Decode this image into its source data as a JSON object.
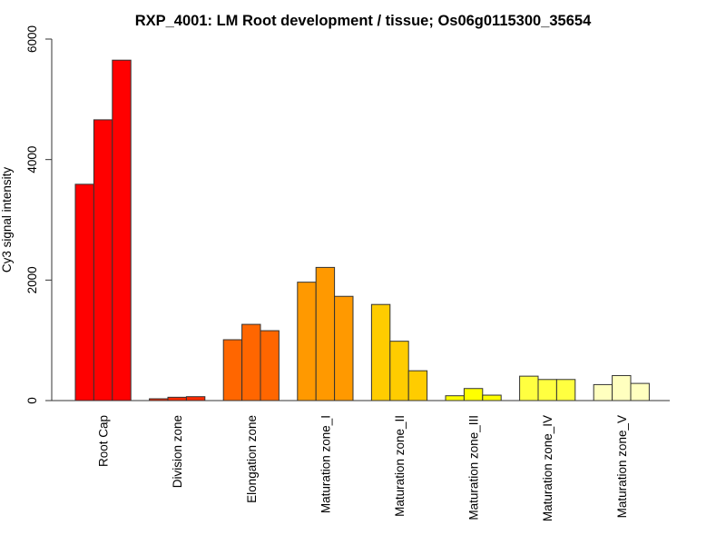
{
  "chart_data": {
    "type": "bar",
    "title": "RXP_4001: LM Root development / tissue; Os06g0115300_35654",
    "xlabel": "",
    "ylabel": "Cy3 signal intensity",
    "ylim": [
      0,
      6000
    ],
    "yticks": [
      0,
      2000,
      4000,
      6000
    ],
    "ytick_labels": [
      "0",
      "2000",
      "4000",
      "6000"
    ],
    "grid": false,
    "legend": "none",
    "categories": [
      "Root Cap",
      "Division zone",
      "Elongation zone",
      "Maturation zone_I",
      "Maturation zone_II",
      "Maturation zone_III",
      "Maturation zone_IV",
      "Maturation zone_V"
    ],
    "colors": [
      "#FF0000",
      "#FF2A00",
      "#FF6600",
      "#FF9900",
      "#FFCC00",
      "#FFFF00",
      "#FFFF40",
      "#FFFFBF"
    ],
    "replicates_per_category": 3,
    "values": [
      [
        3590,
        4660,
        5650
      ],
      [
        30,
        55,
        65
      ],
      [
        1010,
        1265,
        1160
      ],
      [
        1965,
        2210,
        1730
      ],
      [
        1595,
        985,
        495
      ],
      [
        80,
        200,
        90
      ],
      [
        405,
        350,
        350
      ],
      [
        265,
        415,
        285
      ]
    ]
  }
}
